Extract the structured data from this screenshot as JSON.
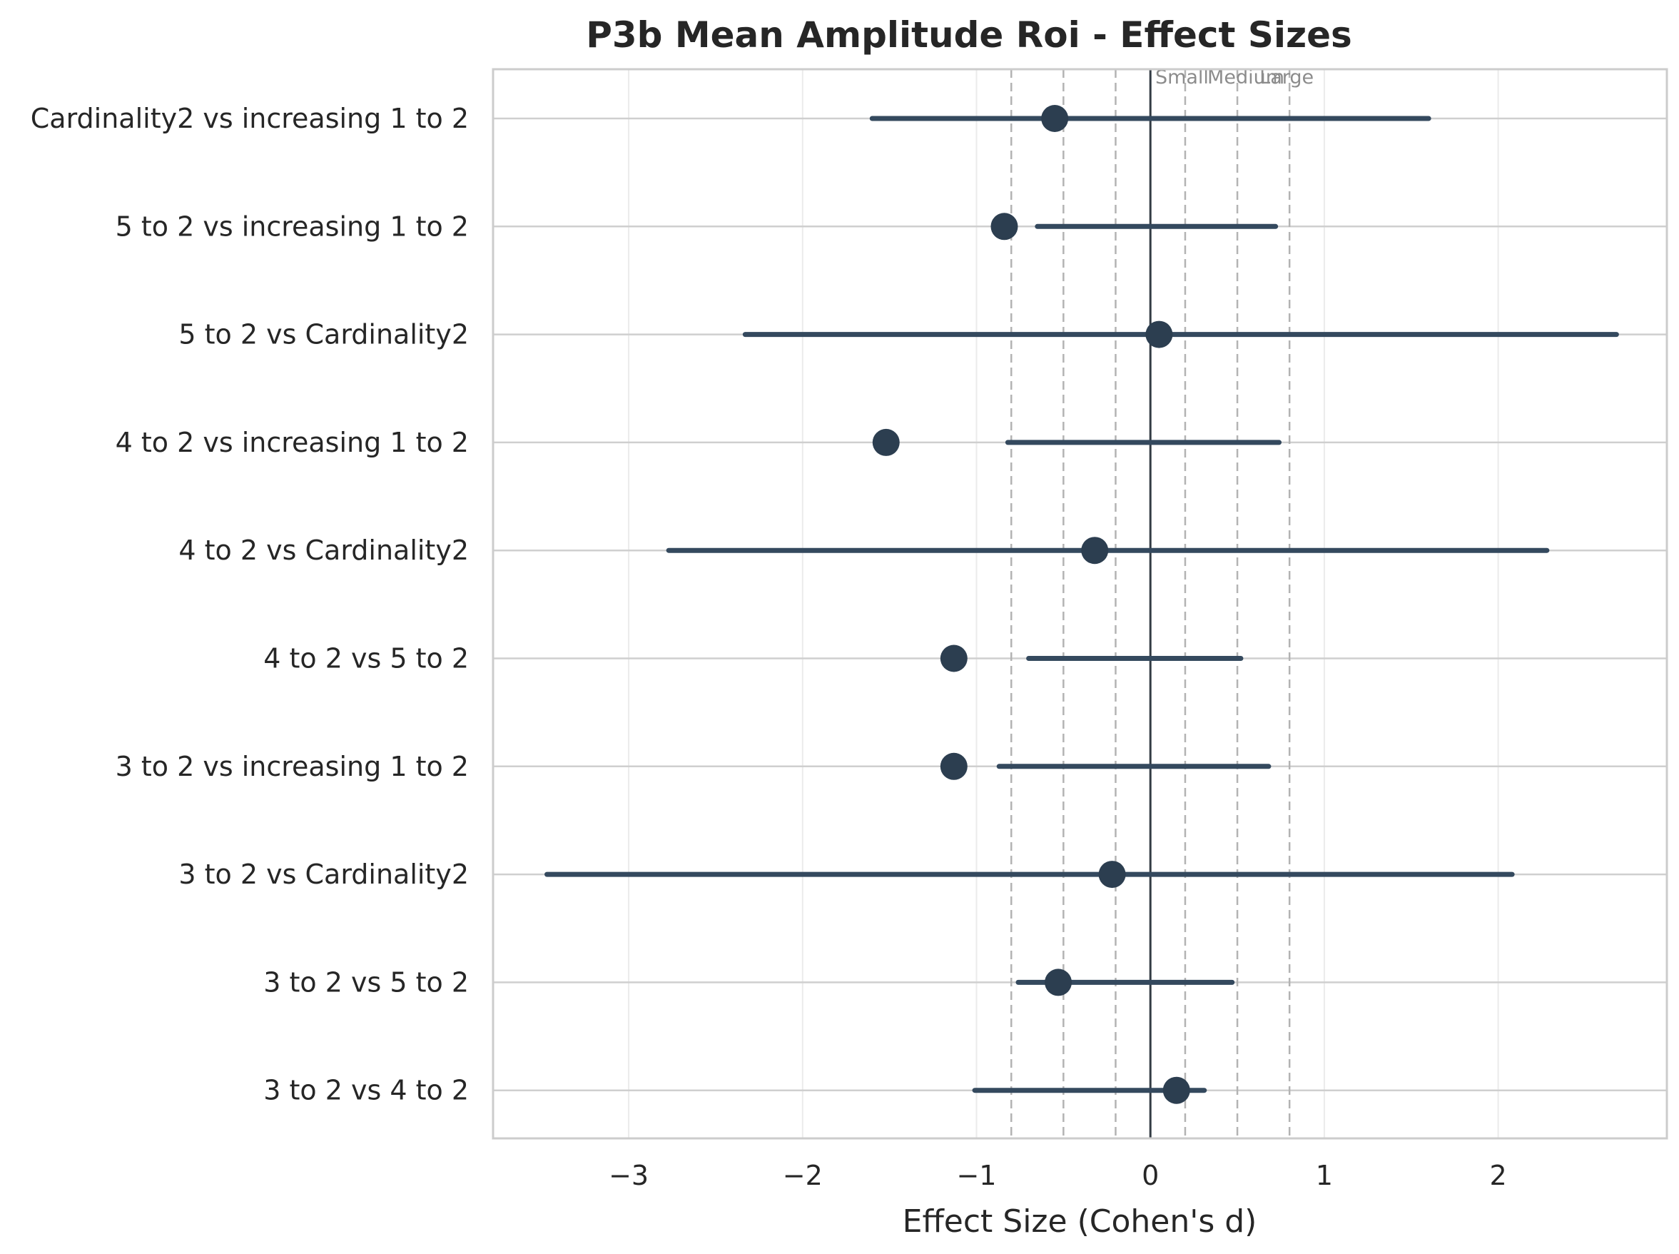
{
  "chart_data": {
    "type": "forest",
    "title": "P3b Mean Amplitude Roi - Effect Sizes",
    "xlabel": "Effect Size (Cohen's d)",
    "ylabel": "",
    "xlim": [
      -3.78,
      2.97
    ],
    "x_ticks": [
      -3,
      -2,
      -1,
      0,
      1,
      2
    ],
    "x_tick_labels": [
      "−3",
      "−2",
      "−1",
      "0",
      "1",
      "2"
    ],
    "grid": true,
    "reference_line": 0,
    "thresholds": [
      {
        "label": "Small",
        "value": 0.2
      },
      {
        "label": "Medium",
        "value": 0.5
      },
      {
        "label": "Large",
        "value": 0.8
      }
    ],
    "point_color": "#2c3e50",
    "comparisons": [
      {
        "label": "Cardinality2 vs increasing 1 to 2",
        "d": -0.55,
        "ci_low": -1.6,
        "ci_high": 1.6
      },
      {
        "label": "5 to 2 vs increasing 1 to 2",
        "d": -0.84,
        "ci_low": -0.65,
        "ci_high": 0.72
      },
      {
        "label": "5 to 2 vs Cardinality2",
        "d": 0.05,
        "ci_low": -2.33,
        "ci_high": 2.68
      },
      {
        "label": "4 to 2 vs increasing 1 to 2",
        "d": -1.52,
        "ci_low": -0.82,
        "ci_high": 0.74
      },
      {
        "label": "4 to 2 vs Cardinality2",
        "d": -0.32,
        "ci_low": -2.77,
        "ci_high": 2.28
      },
      {
        "label": "4 to 2 vs 5 to 2",
        "d": -1.13,
        "ci_low": -0.7,
        "ci_high": 0.52
      },
      {
        "label": "3 to 2 vs increasing 1 to 2",
        "d": -1.13,
        "ci_low": -0.87,
        "ci_high": 0.68
      },
      {
        "label": "3 to 2 vs Cardinality2",
        "d": -0.22,
        "ci_low": -3.47,
        "ci_high": 2.08
      },
      {
        "label": "3 to 2 vs 5 to 2",
        "d": -0.53,
        "ci_low": -0.76,
        "ci_high": 0.47
      },
      {
        "label": "3 to 2 vs 4 to 2",
        "d": 0.15,
        "ci_low": -1.01,
        "ci_high": 0.31
      }
    ]
  }
}
